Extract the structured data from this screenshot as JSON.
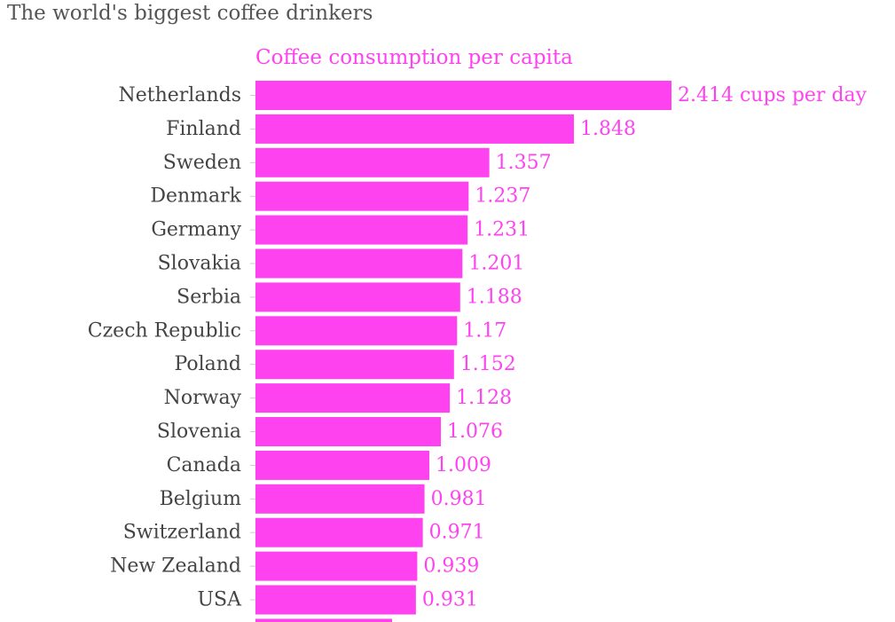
{
  "colors": {
    "bar": "#ff42f0",
    "value_label": "#ff42f0",
    "category_label": "#444444",
    "title": "#555555",
    "tick": "#cccccc"
  },
  "chart_data": {
    "type": "bar",
    "orientation": "horizontal",
    "title": "The world's biggest coffee drinkers",
    "series_title": "Coffee consumption per capita",
    "first_value_suffix": " cups per day",
    "grid": false,
    "categories": [
      "Netherlands",
      "Finland",
      "Sweden",
      "Denmark",
      "Germany",
      "Slovakia",
      "Serbia",
      "Czech Republic",
      "Poland",
      "Norway",
      "Slovenia",
      "Canada",
      "Belgium",
      "Switzerland",
      "New Zealand",
      "USA"
    ],
    "values": [
      2.414,
      1.848,
      1.357,
      1.237,
      1.231,
      1.201,
      1.188,
      1.17,
      1.152,
      1.128,
      1.076,
      1.009,
      0.981,
      0.971,
      0.939,
      0.931
    ],
    "value_labels": [
      "2.414",
      "1.848",
      "1.357",
      "1.237",
      "1.231",
      "1.201",
      "1.188",
      "1.17",
      "1.152",
      "1.128",
      "1.076",
      "1.009",
      "0.981",
      "0.971",
      "0.939",
      "0.931"
    ],
    "xlim": [
      0,
      2.414
    ]
  }
}
